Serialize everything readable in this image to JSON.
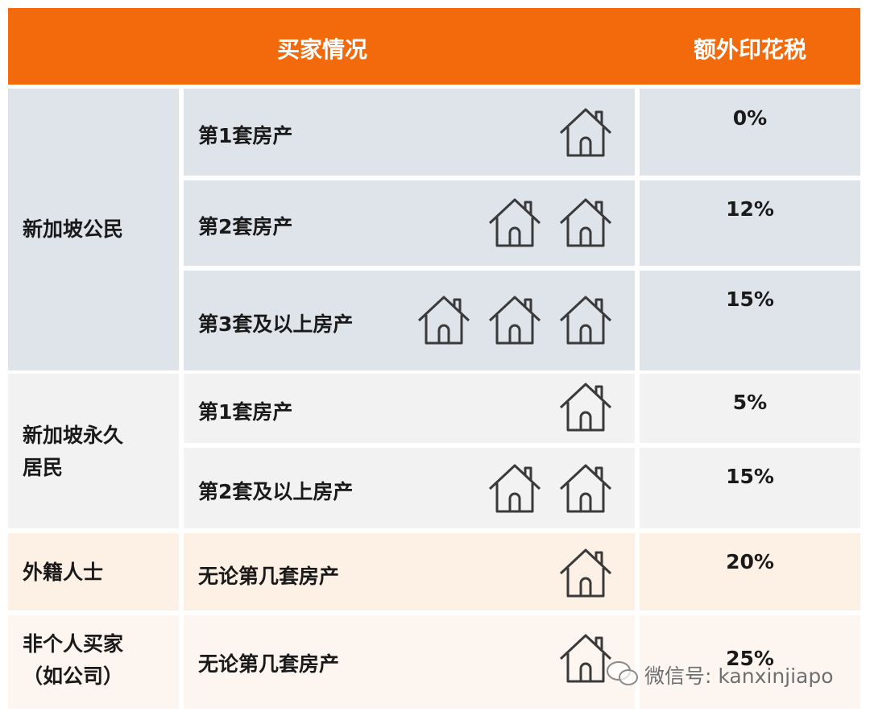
{
  "header": {
    "columns": [
      "买家情况",
      "额外印花税"
    ]
  },
  "groups": [
    {
      "buyer": "新加坡公民",
      "rows": [
        {
          "label": "第1套房产",
          "rate": "0%"
        },
        {
          "label": "第2套房产",
          "rate": "12%"
        },
        {
          "label": "第3套及以上房产",
          "rate": "15%"
        }
      ]
    },
    {
      "buyer": "新加坡永久居民",
      "rows": [
        {
          "label": "第1套房产",
          "rate": "5%"
        },
        {
          "label": "第2套及以上房产",
          "rate": "15%"
        }
      ]
    },
    {
      "buyer": "外籍人士",
      "rows": [
        {
          "label": "无论第几套房产",
          "rate": "20%"
        }
      ]
    },
    {
      "buyer": "非个人买家（如公司）",
      "rows": [
        {
          "label": "无论第几套房产",
          "rate": "25%"
        }
      ]
    }
  ],
  "watermark": "微信号: kanxinjiapo"
}
